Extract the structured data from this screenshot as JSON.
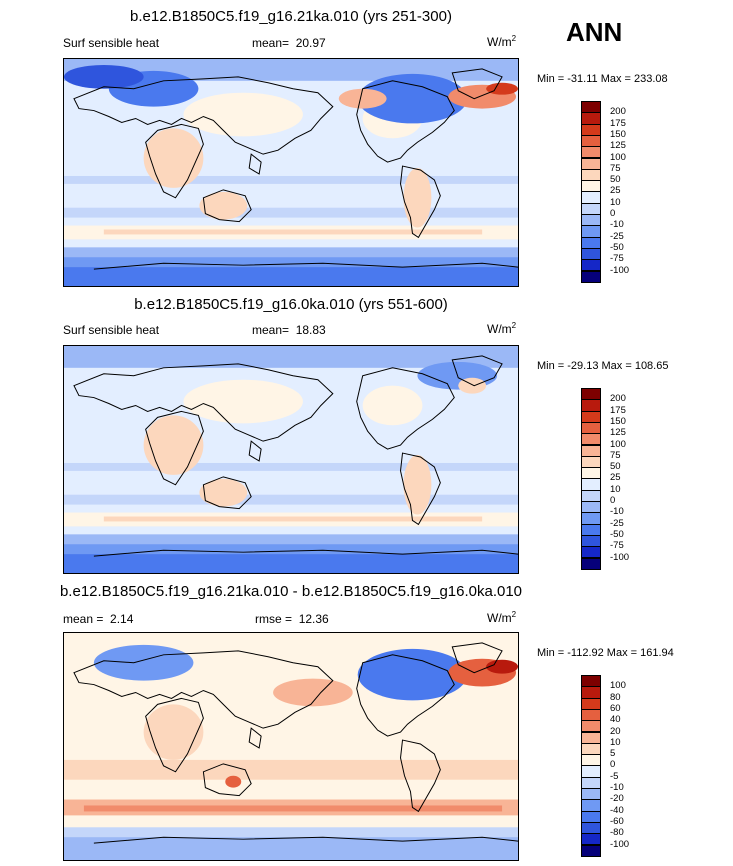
{
  "season": "ANN",
  "colors": {
    "abs_scale": [
      "#06007a",
      "#1527c7",
      "#2f55dd",
      "#4a79ee",
      "#6f99f3",
      "#9bb8f6",
      "#c4d6fa",
      "#e3eeff",
      "#fff5e6",
      "#fcd7bd",
      "#f8b496",
      "#f18b6b",
      "#e5603f",
      "#d43a1b",
      "#b81a0d",
      "#7d0000"
    ],
    "diff_scale": [
      "#06007a",
      "#1527c7",
      "#2f55dd",
      "#4a79ee",
      "#6f99f3",
      "#9bb8f6",
      "#c4d6fa",
      "#e3eeff",
      "#fff5e6",
      "#fcd7bd",
      "#f8b496",
      "#f18b6b",
      "#e5603f",
      "#d43a1b",
      "#b81a0d",
      "#7d0000"
    ],
    "land": "#000000"
  },
  "panels": [
    {
      "title": "b.e12.B1850C5.f19_g16.21ka.010 (yrs 251-300)",
      "variable": "Surf sensible heat",
      "stat_label": "mean=",
      "stat_value": "20.97",
      "units": "W/m",
      "units_exp": "2",
      "minmax": "Min = -31.11 Max = 233.08",
      "levels": [
        "200",
        "175",
        "150",
        "125",
        "100",
        "75",
        "50",
        "25",
        "10",
        "0",
        "-10",
        "-25",
        "-50",
        "-75",
        "-100"
      ],
      "map_style": "lgm"
    },
    {
      "title": "b.e12.B1850C5.f19_g16.0ka.010 (yrs 551-600)",
      "variable": "Surf sensible heat",
      "stat_label": "mean=",
      "stat_value": "18.83",
      "units": "W/m",
      "units_exp": "2",
      "minmax": "Min = -29.13 Max = 108.65",
      "levels": [
        "200",
        "175",
        "150",
        "125",
        "100",
        "75",
        "50",
        "25",
        "10",
        "0",
        "-10",
        "-25",
        "-50",
        "-75",
        "-100"
      ],
      "map_style": "pi"
    },
    {
      "title": "b.e12.B1850C5.f19_g16.21ka.010 - b.e12.B1850C5.f19_g16.0ka.010",
      "stat_label": "mean =",
      "stat_value": "2.14",
      "rmse_label": "rmse =",
      "rmse_value": "12.36",
      "units": "W/m",
      "units_exp": "2",
      "minmax": "Min = -112.92 Max = 161.94",
      "levels": [
        "100",
        "80",
        "60",
        "40",
        "20",
        "10",
        "5",
        "0",
        "-5",
        "-10",
        "-20",
        "-40",
        "-60",
        "-80",
        "-100"
      ],
      "map_style": "diff"
    }
  ]
}
